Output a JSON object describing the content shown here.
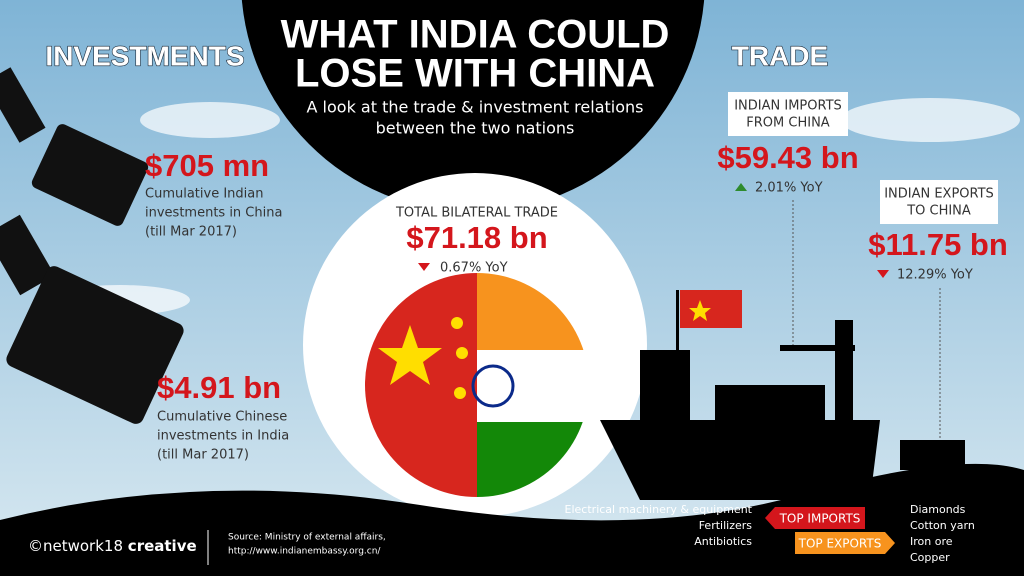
{
  "header": {
    "title_lines": [
      "WHAT INDIA COULD",
      "LOSE WITH CHINA"
    ],
    "subtitle_lines": [
      "A look at the trade & investment relations",
      "between the two nations"
    ]
  },
  "investments": {
    "heading": "INVESTMENTS",
    "items": [
      {
        "value": "$705 mn",
        "label_lines": [
          "Cumulative Indian",
          "investments in China",
          "(till Mar 2017)"
        ]
      },
      {
        "value": "$4.91 bn",
        "label_lines": [
          "Cumulative Chinese",
          "investments in India",
          "(till Mar 2017)"
        ]
      }
    ]
  },
  "bilateral": {
    "label": "TOTAL BILATERAL TRADE",
    "value": "$71.18 bn",
    "change": "0.67% YoY"
  },
  "trade": {
    "heading": "TRADE",
    "imports": {
      "label_lines": [
        "INDIAN IMPORTS",
        "FROM CHINA"
      ],
      "value": "$59.43 bn",
      "change": "2.01% YoY"
    },
    "exports": {
      "label_lines": [
        "INDIAN EXPORTS",
        "TO CHINA"
      ],
      "value": "$11.75 bn",
      "change": "12.29% YoY"
    }
  },
  "top_imports": {
    "label": "TOP IMPORTS",
    "items": [
      "Electrical machinery & equipment",
      "Fertilizers",
      "Antibiotics"
    ]
  },
  "top_exports": {
    "label": "TOP EXPORTS",
    "items": [
      "Diamonds",
      "Cotton yarn",
      "Iron ore",
      "Copper"
    ]
  },
  "footer": {
    "brand_light": "©network18",
    "brand_bold": "creative",
    "source_lines": [
      "Source: Ministry of external affairs,",
      "http://www.indianembassy.org.cn/"
    ]
  }
}
